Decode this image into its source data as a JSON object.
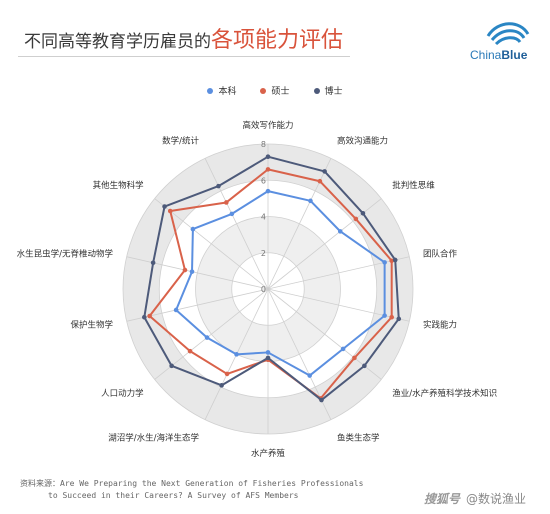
{
  "title": {
    "part1": "不同高等教育学历雇员的",
    "part2": "各项能力评估"
  },
  "logo": {
    "text_a": "China",
    "text_b": "Blue"
  },
  "source": {
    "prefix": "资料来源：",
    "line1": "Are We Preparing the Next Generation of Fisheries Professionals",
    "line2": "to Succeed in their Careers? A Survey of AFS Members"
  },
  "watermark": {
    "part1": "搜狐号",
    "part2": "@数说渔业"
  },
  "colors": {
    "series1": "#5b8fe0",
    "series2": "#d9624a",
    "series3": "#4d5a7a"
  },
  "chart_data": {
    "type": "radar",
    "categories": [
      "高效写作能力",
      "高效沟通能力",
      "批判性思维",
      "团队合作",
      "实践能力",
      "渔业/水产养殖科学技术知识",
      "鱼类生态学",
      "水产养殖",
      "湖沼学/水生/海洋生态学",
      "人口动力学",
      "保护生物学",
      "水生昆虫学/无脊椎动物学",
      "其他生物科学",
      "数学/统计"
    ],
    "rlim": [
      0,
      8
    ],
    "ticks": [
      0,
      2,
      4,
      6,
      8
    ],
    "series": [
      {
        "name": "本科",
        "values": [
          5.4,
          5.4,
          5.1,
          6.6,
          6.6,
          5.3,
          5.3,
          3.5,
          4.0,
          4.3,
          5.2,
          4.3,
          5.3,
          4.6
        ]
      },
      {
        "name": "硕士",
        "values": [
          6.6,
          6.6,
          6.2,
          7.0,
          7.0,
          6.1,
          6.7,
          3.9,
          5.2,
          5.5,
          6.7,
          4.7,
          6.9,
          5.3
        ]
      },
      {
        "name": "博士",
        "values": [
          7.3,
          7.2,
          6.7,
          7.2,
          7.4,
          6.8,
          6.8,
          3.8,
          5.9,
          6.8,
          7.0,
          6.5,
          7.3,
          6.3
        ]
      }
    ]
  }
}
